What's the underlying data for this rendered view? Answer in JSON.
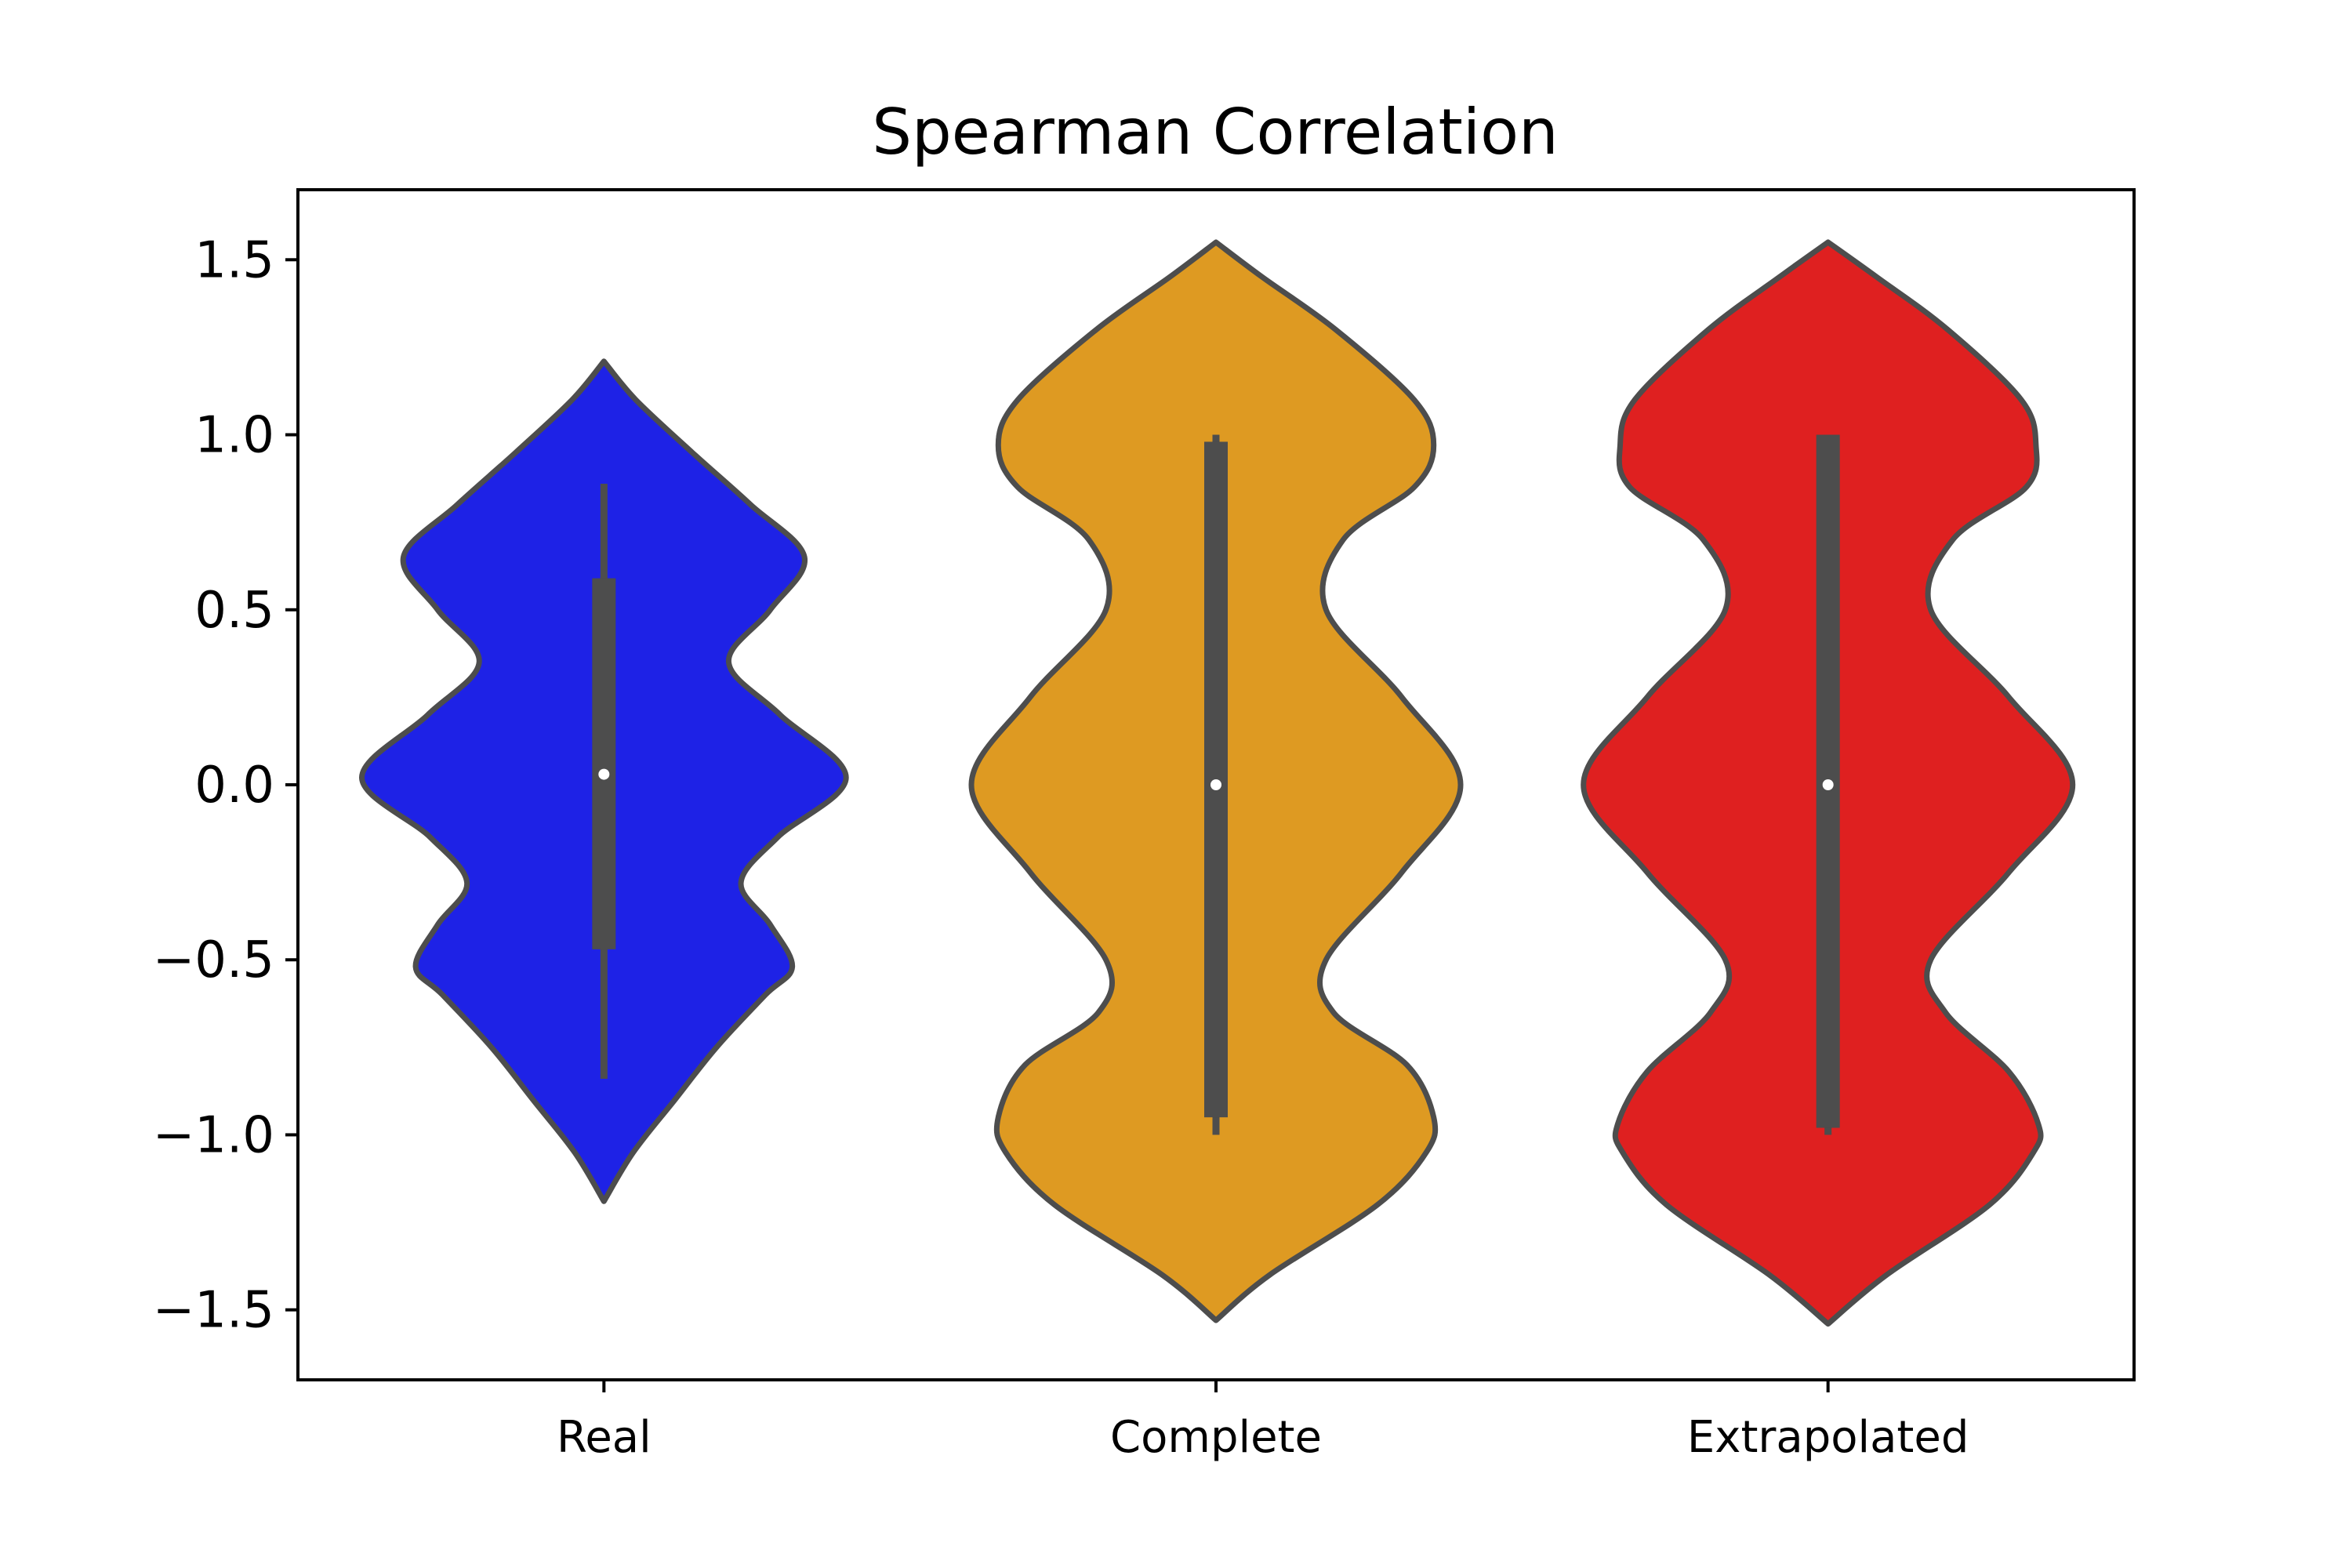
{
  "chart_data": {
    "type": "violin",
    "title": "Spearman Correlation",
    "xlabel": "",
    "ylabel": "",
    "ylim": [
      -1.7,
      1.7
    ],
    "yticks": [
      1.5,
      1.0,
      0.5,
      0.0,
      -0.5,
      -1.0,
      -1.5
    ],
    "ytick_labels": [
      "1.5",
      "1.0",
      "0.5",
      "0.0",
      "−0.5",
      "−1.0",
      "−1.5"
    ],
    "categories": [
      "Real",
      "Complete",
      "Extrapolated"
    ],
    "grid": false,
    "series": [
      {
        "category": "Real",
        "color": "#1e22e6",
        "min": -0.84,
        "q1": -0.47,
        "median": 0.03,
        "q3": 0.59,
        "max": 0.86,
        "kde_range": [
          -1.19,
          1.21
        ],
        "density": [
          [
            -1.19,
            0.0
          ],
          [
            -1.05,
            0.12
          ],
          [
            -0.9,
            0.29
          ],
          [
            -0.75,
            0.46
          ],
          [
            -0.6,
            0.66
          ],
          [
            -0.52,
            0.77
          ],
          [
            -0.4,
            0.68
          ],
          [
            -0.28,
            0.56
          ],
          [
            -0.15,
            0.71
          ],
          [
            0.02,
            0.99
          ],
          [
            0.2,
            0.72
          ],
          [
            0.35,
            0.51
          ],
          [
            0.5,
            0.68
          ],
          [
            0.65,
            0.82
          ],
          [
            0.8,
            0.6
          ],
          [
            0.95,
            0.36
          ],
          [
            1.1,
            0.13
          ],
          [
            1.21,
            0.0
          ]
        ]
      },
      {
        "category": "Complete",
        "color": "#de9a22",
        "min": -1.0,
        "q1": -0.95,
        "median": 0.0,
        "q3": 0.98,
        "max": 1.0,
        "kde_range": [
          -1.53,
          1.55
        ],
        "density": [
          [
            -1.53,
            0.0
          ],
          [
            -1.4,
            0.22
          ],
          [
            -1.2,
            0.66
          ],
          [
            -1.05,
            0.86
          ],
          [
            -0.95,
            0.89
          ],
          [
            -0.8,
            0.78
          ],
          [
            -0.65,
            0.48
          ],
          [
            -0.5,
            0.45
          ],
          [
            -0.25,
            0.76
          ],
          [
            0.0,
            1.0
          ],
          [
            0.25,
            0.76
          ],
          [
            0.5,
            0.45
          ],
          [
            0.7,
            0.52
          ],
          [
            0.85,
            0.81
          ],
          [
            0.97,
            0.89
          ],
          [
            1.1,
            0.81
          ],
          [
            1.3,
            0.49
          ],
          [
            1.45,
            0.19
          ],
          [
            1.55,
            0.0
          ]
        ]
      },
      {
        "category": "Extrapolated",
        "color": "#df2020",
        "min": -1.0,
        "q1": -0.98,
        "median": 0.0,
        "q3": 1.0,
        "max": 1.0,
        "kde_range": [
          -1.54,
          1.55
        ],
        "density": [
          [
            -1.54,
            0.0
          ],
          [
            -1.4,
            0.24
          ],
          [
            -1.2,
            0.66
          ],
          [
            -1.05,
            0.84
          ],
          [
            -0.97,
            0.86
          ],
          [
            -0.82,
            0.74
          ],
          [
            -0.65,
            0.48
          ],
          [
            -0.5,
            0.42
          ],
          [
            -0.25,
            0.74
          ],
          [
            0.0,
            1.0
          ],
          [
            0.25,
            0.74
          ],
          [
            0.5,
            0.42
          ],
          [
            0.7,
            0.51
          ],
          [
            0.85,
            0.81
          ],
          [
            0.97,
            0.85
          ],
          [
            1.1,
            0.79
          ],
          [
            1.3,
            0.49
          ],
          [
            1.45,
            0.2
          ],
          [
            1.55,
            0.0
          ]
        ]
      }
    ]
  }
}
